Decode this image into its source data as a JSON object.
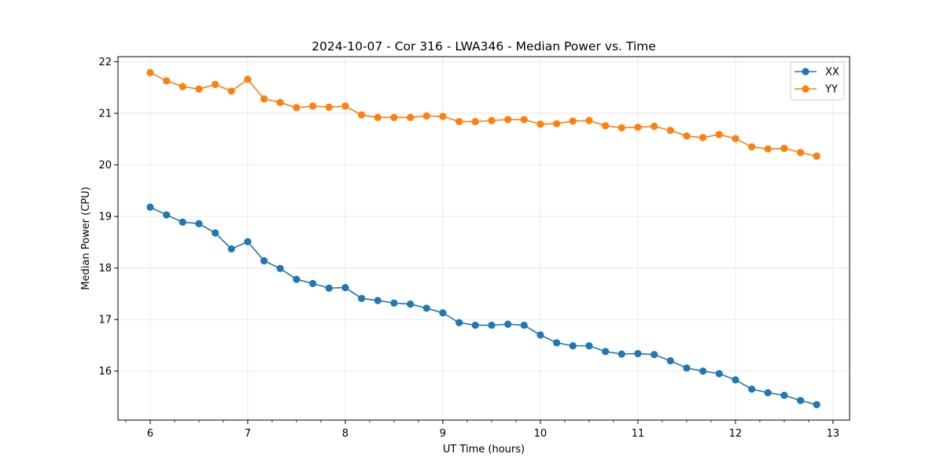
{
  "chart_data": {
    "type": "line",
    "title": "2024-10-07 - Cor 316 - LWA346 - Median Power vs. Time",
    "xlabel": "UT Time (hours)",
    "ylabel": "Median Power (CPU)",
    "xlim": [
      5.67,
      13.17
    ],
    "ylim": [
      15.05,
      22.1
    ],
    "xticks": [
      6,
      7,
      8,
      9,
      10,
      11,
      12,
      13
    ],
    "yticks": [
      16,
      17,
      18,
      19,
      20,
      21,
      22
    ],
    "minor_xticks_step": 0.25,
    "grid": true,
    "legend_position": "top-right",
    "x": [
      6.0,
      6.167,
      6.333,
      6.5,
      6.667,
      6.833,
      7.0,
      7.167,
      7.333,
      7.5,
      7.667,
      7.833,
      8.0,
      8.167,
      8.333,
      8.5,
      8.667,
      8.833,
      9.0,
      9.167,
      9.333,
      9.5,
      9.667,
      9.833,
      10.0,
      10.167,
      10.333,
      10.5,
      10.667,
      10.833,
      11.0,
      11.167,
      11.333,
      11.5,
      11.667,
      11.833,
      12.0,
      12.167,
      12.333,
      12.5,
      12.667,
      12.833
    ],
    "series": [
      {
        "name": "XX",
        "color": "#1f77b4",
        "values": [
          19.18,
          19.03,
          18.89,
          18.86,
          18.68,
          18.37,
          18.51,
          18.14,
          17.99,
          17.78,
          17.7,
          17.61,
          17.62,
          17.41,
          17.37,
          17.32,
          17.3,
          17.22,
          17.13,
          16.94,
          16.89,
          16.89,
          16.91,
          16.89,
          16.7,
          16.55,
          16.49,
          16.49,
          16.38,
          16.33,
          16.34,
          16.32,
          16.2,
          16.06,
          16.0,
          15.95,
          15.83,
          15.65,
          15.58,
          15.53,
          15.43,
          15.35
        ]
      },
      {
        "name": "YY",
        "color": "#ff7f0e",
        "values": [
          21.79,
          21.63,
          21.52,
          21.47,
          21.56,
          21.43,
          21.66,
          21.28,
          21.21,
          21.11,
          21.14,
          21.12,
          21.14,
          20.97,
          20.92,
          20.92,
          20.92,
          20.95,
          20.94,
          20.84,
          20.84,
          20.86,
          20.88,
          20.88,
          20.79,
          20.8,
          20.85,
          20.86,
          20.76,
          20.72,
          20.73,
          20.75,
          20.67,
          20.56,
          20.53,
          20.59,
          20.51,
          20.35,
          20.31,
          20.32,
          20.24,
          20.17
        ]
      }
    ]
  }
}
